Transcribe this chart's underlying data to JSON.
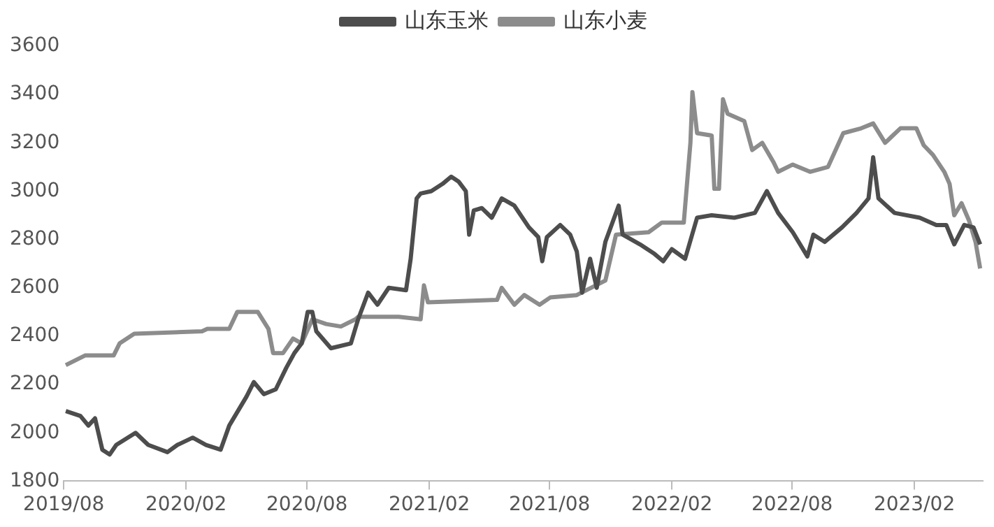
{
  "chart_data": {
    "type": "line",
    "xlim": [
      "2019-08",
      "2023-05-15"
    ],
    "ylim": [
      1800,
      3600
    ],
    "yticks": [
      1800,
      2000,
      2200,
      2400,
      2600,
      2800,
      3000,
      3200,
      3400,
      3600
    ],
    "xticks": [
      {
        "value": "2019-08",
        "label": "2019/08"
      },
      {
        "value": "2020-02",
        "label": "2020/02"
      },
      {
        "value": "2020-08",
        "label": "2020/08"
      },
      {
        "value": "2021-02",
        "label": "2021/02"
      },
      {
        "value": "2021-08",
        "label": "2021/08"
      },
      {
        "value": "2022-02",
        "label": "2022/02"
      },
      {
        "value": "2022-08",
        "label": "2022/08"
      },
      {
        "value": "2023-02",
        "label": "2023/02"
      }
    ],
    "grid": false,
    "legend": "top",
    "marker": "none",
    "line_style": "solid",
    "series": [
      {
        "name": "山东玉米",
        "color": "#4d4d4d",
        "x": [
          "2019-08-04",
          "2019-08-26",
          "2019-09-07",
          "2019-09-17",
          "2019-09-28",
          "2019-10-09",
          "2019-10-19",
          "2019-11-17",
          "2019-12-06",
          "2020-01-04",
          "2020-01-19",
          "2020-02-11",
          "2020-03-02",
          "2020-03-24",
          "2020-04-06",
          "2020-05-02",
          "2020-05-13",
          "2020-05-28",
          "2020-06-15",
          "2020-07-01",
          "2020-07-13",
          "2020-07-24",
          "2020-08-02",
          "2020-08-09",
          "2020-08-15",
          "2020-09-06",
          "2020-10-06",
          "2020-10-17",
          "2020-11-01",
          "2020-11-15",
          "2020-12-02",
          "2020-12-28",
          "2021-01-04",
          "2021-01-13",
          "2021-01-19",
          "2021-02-04",
          "2021-02-21",
          "2021-03-06",
          "2021-03-17",
          "2021-03-28",
          "2021-04-02",
          "2021-04-09",
          "2021-04-21",
          "2021-05-06",
          "2021-05-21",
          "2021-06-09",
          "2021-07-01",
          "2021-07-15",
          "2021-07-21",
          "2021-07-28",
          "2021-08-17",
          "2021-09-01",
          "2021-09-11",
          "2021-09-19",
          "2021-10-01",
          "2021-10-11",
          "2021-10-24",
          "2021-11-13",
          "2021-11-19",
          "2021-12-15",
          "2022-01-06",
          "2022-01-19",
          "2022-02-01",
          "2022-02-21",
          "2022-03-11",
          "2022-04-02",
          "2022-05-06",
          "2022-06-06",
          "2022-06-24",
          "2022-07-11",
          "2022-08-02",
          "2022-08-24",
          "2022-09-02",
          "2022-09-19",
          "2022-10-15",
          "2022-11-06",
          "2022-11-24",
          "2022-12-01",
          "2022-12-09",
          "2023-01-02",
          "2023-02-09",
          "2023-03-06",
          "2023-03-21",
          "2023-04-02",
          "2023-04-17",
          "2023-05-01",
          "2023-05-11"
        ],
        "values": [
          2090,
          2070,
          2030,
          2060,
          1930,
          1910,
          1950,
          2000,
          1950,
          1920,
          1950,
          1980,
          1950,
          1930,
          2030,
          2150,
          2210,
          2160,
          2180,
          2270,
          2330,
          2370,
          2500,
          2500,
          2420,
          2350,
          2370,
          2470,
          2580,
          2530,
          2600,
          2590,
          2720,
          2970,
          2990,
          3000,
          3030,
          3060,
          3040,
          3000,
          2820,
          2920,
          2930,
          2890,
          2970,
          2940,
          2850,
          2810,
          2710,
          2810,
          2860,
          2820,
          2750,
          2580,
          2720,
          2600,
          2790,
          2940,
          2820,
          2780,
          2740,
          2710,
          2760,
          2720,
          2890,
          2900,
          2890,
          2910,
          3000,
          2910,
          2830,
          2730,
          2820,
          2790,
          2850,
          2910,
          2970,
          3140,
          2970,
          2910,
          2890,
          2860,
          2860,
          2780,
          2860,
          2850,
          2780
        ]
      },
      {
        "name": "山东小麦",
        "color": "#8c8c8c",
        "x": [
          "2019-08-04",
          "2019-09-02",
          "2019-10-15",
          "2019-10-24",
          "2019-11-15",
          "2020-02-25",
          "2020-03-04",
          "2020-04-06",
          "2020-04-18",
          "2020-05-19",
          "2020-06-04",
          "2020-06-11",
          "2020-06-26",
          "2020-07-11",
          "2020-07-24",
          "2020-08-09",
          "2020-08-30",
          "2020-09-21",
          "2020-10-13",
          "2020-10-17",
          "2020-12-17",
          "2021-01-19",
          "2021-01-24",
          "2021-01-30",
          "2021-05-14",
          "2021-05-21",
          "2021-06-09",
          "2021-06-24",
          "2021-07-17",
          "2021-08-02",
          "2021-09-11",
          "2021-10-24",
          "2021-11-09",
          "2021-12-28",
          "2022-01-17",
          "2022-02-19",
          "2022-03-01",
          "2022-03-04",
          "2022-03-11",
          "2022-04-02",
          "2022-04-06",
          "2022-04-13",
          "2022-04-19",
          "2022-04-26",
          "2022-05-21",
          "2022-06-02",
          "2022-06-17",
          "2022-07-04",
          "2022-07-11",
          "2022-08-02",
          "2022-08-28",
          "2022-09-24",
          "2022-10-17",
          "2022-11-13",
          "2022-12-01",
          "2022-12-19",
          "2023-01-11",
          "2023-02-04",
          "2023-02-15",
          "2023-03-01",
          "2023-03-18",
          "2023-03-26",
          "2023-04-02",
          "2023-04-13",
          "2023-04-24",
          "2023-05-04",
          "2023-05-11"
        ],
        "values": [
          2280,
          2320,
          2320,
          2370,
          2410,
          2420,
          2430,
          2430,
          2500,
          2500,
          2430,
          2330,
          2330,
          2390,
          2370,
          2470,
          2450,
          2440,
          2470,
          2480,
          2480,
          2470,
          2610,
          2540,
          2550,
          2600,
          2530,
          2570,
          2530,
          2560,
          2570,
          2630,
          2820,
          2830,
          2870,
          2870,
          3200,
          3410,
          3240,
          3230,
          3010,
          3010,
          3380,
          3320,
          3290,
          3170,
          3200,
          3120,
          3080,
          3110,
          3080,
          3100,
          3240,
          3260,
          3280,
          3200,
          3260,
          3260,
          3190,
          3150,
          3080,
          3030,
          2900,
          2950,
          2880,
          2790,
          2680
        ]
      }
    ]
  }
}
